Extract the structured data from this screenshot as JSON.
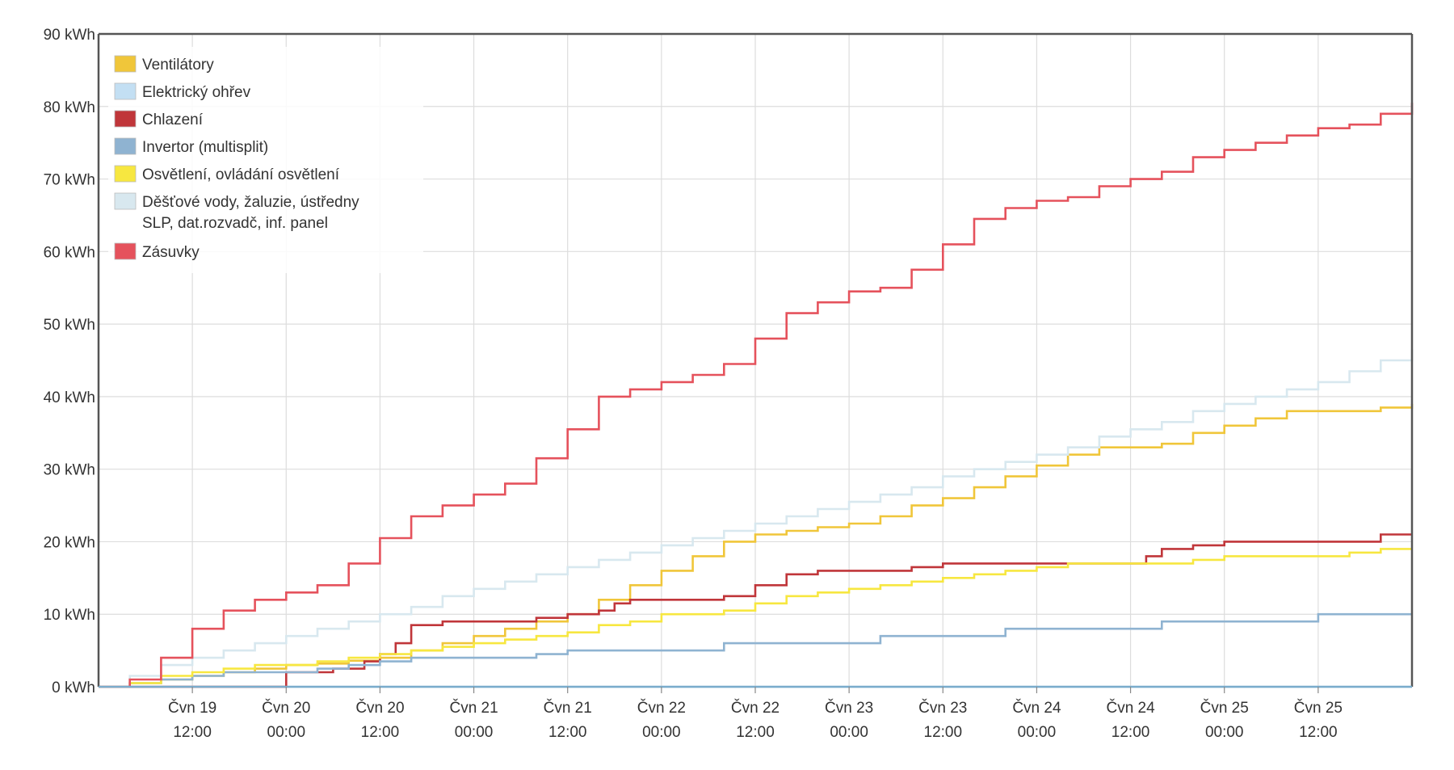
{
  "chart_data": {
    "type": "line",
    "step": true,
    "title": "",
    "xlabel": "",
    "ylabel": "",
    "ylim": [
      0,
      90
    ],
    "xlim": [
      0,
      168
    ],
    "grid": true,
    "legend_position": "top-left",
    "y_ticks": [
      {
        "value": 0,
        "label": "0 kWh"
      },
      {
        "value": 10,
        "label": "10 kWh"
      },
      {
        "value": 20,
        "label": "20 kWh"
      },
      {
        "value": 30,
        "label": "30 kWh"
      },
      {
        "value": 40,
        "label": "40 kWh"
      },
      {
        "value": 50,
        "label": "50 kWh"
      },
      {
        "value": 60,
        "label": "60 kWh"
      },
      {
        "value": 70,
        "label": "70 kWh"
      },
      {
        "value": 80,
        "label": "80 kWh"
      },
      {
        "value": 90,
        "label": "90 kWh"
      }
    ],
    "x_ticks": [
      {
        "value": 12,
        "line1": "Čvn 19",
        "line2": "12:00"
      },
      {
        "value": 24,
        "line1": "Čvn 20",
        "line2": "00:00"
      },
      {
        "value": 36,
        "line1": "Čvn 20",
        "line2": "12:00"
      },
      {
        "value": 48,
        "line1": "Čvn 21",
        "line2": "00:00"
      },
      {
        "value": 60,
        "line1": "Čvn 21",
        "line2": "12:00"
      },
      {
        "value": 72,
        "line1": "Čvn 22",
        "line2": "00:00"
      },
      {
        "value": 84,
        "line1": "Čvn 22",
        "line2": "12:00"
      },
      {
        "value": 96,
        "line1": "Čvn 23",
        "line2": "00:00"
      },
      {
        "value": 108,
        "line1": "Čvn 23",
        "line2": "12:00"
      },
      {
        "value": 120,
        "line1": "Čvn 24",
        "line2": "00:00"
      },
      {
        "value": 132,
        "line1": "Čvn 24",
        "line2": "12:00"
      },
      {
        "value": 144,
        "line1": "Čvn 25",
        "line2": "00:00"
      },
      {
        "value": 156,
        "line1": "Čvn 25",
        "line2": "12:00"
      }
    ],
    "series": [
      {
        "name": "Ventilátory",
        "legend_lines": [
          "Ventilátory"
        ],
        "color": "#f0c63a",
        "x": [
          0,
          4,
          8,
          12,
          16,
          20,
          24,
          28,
          32,
          36,
          40,
          44,
          48,
          52,
          56,
          60,
          64,
          68,
          72,
          76,
          80,
          84,
          88,
          92,
          96,
          100,
          104,
          108,
          112,
          116,
          120,
          124,
          128,
          132,
          136,
          140,
          144,
          148,
          152,
          156,
          160,
          164,
          168
        ],
        "y": [
          0,
          0.5,
          1,
          1.5,
          2,
          2.5,
          3,
          3.2,
          3.6,
          4,
          5,
          6,
          7,
          8,
          9,
          10,
          12,
          14,
          16,
          18,
          20,
          21,
          21.5,
          22,
          22.5,
          23.5,
          25,
          26,
          27.5,
          29,
          30.5,
          32,
          33,
          33,
          33.5,
          35,
          36,
          37,
          38,
          38,
          38,
          38.5,
          39
        ]
      },
      {
        "name": "Elektrický ohřev",
        "legend_lines": [
          "Elektrický ohřev"
        ],
        "color": "#c3dff3",
        "x": [
          0,
          168
        ],
        "y": [
          0,
          0
        ]
      },
      {
        "name": "Chlazení",
        "legend_lines": [
          "Chlazení"
        ],
        "color": "#c0363a",
        "x": [
          0,
          12,
          24,
          30,
          34,
          36,
          38,
          40,
          44,
          48,
          52,
          56,
          60,
          64,
          66,
          68,
          72,
          76,
          80,
          84,
          88,
          92,
          96,
          100,
          104,
          108,
          112,
          116,
          120,
          124,
          128,
          132,
          134,
          136,
          140,
          144,
          148,
          152,
          156,
          160,
          164,
          168
        ],
        "y": [
          0,
          0,
          2,
          2.5,
          3.5,
          4.5,
          6,
          8.5,
          9,
          9,
          9,
          9.5,
          10,
          10.5,
          11.5,
          12,
          12,
          12,
          12.5,
          14,
          15.5,
          16,
          16,
          16,
          16.5,
          17,
          17,
          17,
          17,
          17,
          17,
          17,
          18,
          19,
          19.5,
          20,
          20,
          20,
          20,
          20,
          21,
          21
        ]
      },
      {
        "name": "Invertor (multisplit)",
        "legend_lines": [
          "Invertor (multisplit)"
        ],
        "color": "#8fb3d1",
        "x": [
          0,
          4,
          8,
          12,
          16,
          20,
          24,
          28,
          32,
          36,
          40,
          44,
          48,
          52,
          56,
          60,
          64,
          68,
          72,
          76,
          80,
          84,
          88,
          92,
          96,
          100,
          104,
          108,
          112,
          116,
          120,
          124,
          128,
          132,
          136,
          140,
          144,
          148,
          152,
          156,
          160,
          164,
          168
        ],
        "y": [
          0,
          0.5,
          1,
          1.5,
          2,
          2,
          2,
          2.5,
          3,
          3.5,
          4,
          4,
          4,
          4,
          4.5,
          5,
          5,
          5,
          5,
          5,
          6,
          6,
          6,
          6,
          6,
          7,
          7,
          7,
          7,
          8,
          8,
          8,
          8,
          8,
          9,
          9,
          9,
          9,
          9,
          10,
          10,
          10,
          10
        ]
      },
      {
        "name": "Osvětlení, ovládání osvětlení",
        "legend_lines": [
          "Osvětlení, ovládání osvětlení"
        ],
        "color": "#f7e740",
        "x": [
          0,
          4,
          8,
          12,
          16,
          20,
          24,
          28,
          32,
          36,
          40,
          44,
          48,
          52,
          56,
          60,
          64,
          68,
          72,
          76,
          80,
          84,
          88,
          92,
          96,
          100,
          104,
          108,
          112,
          116,
          120,
          124,
          128,
          132,
          136,
          140,
          144,
          148,
          152,
          156,
          160,
          164,
          168
        ],
        "y": [
          0,
          0.5,
          1.5,
          2,
          2.5,
          3,
          3,
          3.5,
          4,
          4.5,
          5,
          5.5,
          6,
          6.5,
          7,
          7.5,
          8.5,
          9,
          10,
          10,
          10.5,
          11.5,
          12.5,
          13,
          13.5,
          14,
          14.5,
          15,
          15.5,
          16,
          16.5,
          17,
          17,
          17,
          17,
          17.5,
          18,
          18,
          18,
          18,
          18.5,
          19,
          19
        ]
      },
      {
        "name": "Děšťové vody, žaluzie, ústředny SLP, dat.rozvadč, inf. panel",
        "legend_lines": [
          "Děšťové vody, žaluzie, ústředny",
          "SLP, dat.rozvadč, inf. panel"
        ],
        "color": "#d8e8ef",
        "x": [
          0,
          4,
          8,
          12,
          16,
          20,
          24,
          28,
          32,
          36,
          40,
          44,
          48,
          52,
          56,
          60,
          64,
          68,
          72,
          76,
          80,
          84,
          88,
          92,
          96,
          100,
          104,
          108,
          112,
          116,
          120,
          124,
          128,
          132,
          136,
          140,
          144,
          148,
          152,
          156,
          160,
          164,
          168
        ],
        "y": [
          0,
          1.5,
          3,
          4,
          5,
          6,
          7,
          8,
          9,
          10,
          11,
          12.5,
          13.5,
          14.5,
          15.5,
          16.5,
          17.5,
          18.5,
          19.5,
          20.5,
          21.5,
          22.5,
          23.5,
          24.5,
          25.5,
          26.5,
          27.5,
          29,
          30,
          31,
          32,
          33,
          34.5,
          35.5,
          36.5,
          38,
          39,
          40,
          41,
          42,
          43.5,
          45,
          46.5
        ]
      },
      {
        "name": "Zásuvky",
        "legend_lines": [
          "Zásuvky"
        ],
        "color": "#e5525c",
        "x": [
          0,
          4,
          8,
          12,
          16,
          20,
          24,
          28,
          32,
          36,
          40,
          44,
          48,
          52,
          56,
          60,
          64,
          68,
          72,
          76,
          80,
          84,
          88,
          92,
          96,
          100,
          104,
          108,
          112,
          116,
          120,
          124,
          128,
          132,
          136,
          140,
          144,
          148,
          152,
          156,
          160,
          164,
          168
        ],
        "y": [
          0,
          1,
          4,
          8,
          10.5,
          12,
          13,
          14,
          17,
          20.5,
          23.5,
          25,
          26.5,
          28,
          31.5,
          35.5,
          40,
          41,
          42,
          43,
          44.5,
          48,
          51.5,
          53,
          54.5,
          55,
          57.5,
          61,
          64.5,
          66,
          67,
          67.5,
          69,
          70,
          71,
          73,
          74,
          75,
          76,
          77,
          77.5,
          79,
          80.5
        ]
      }
    ]
  }
}
